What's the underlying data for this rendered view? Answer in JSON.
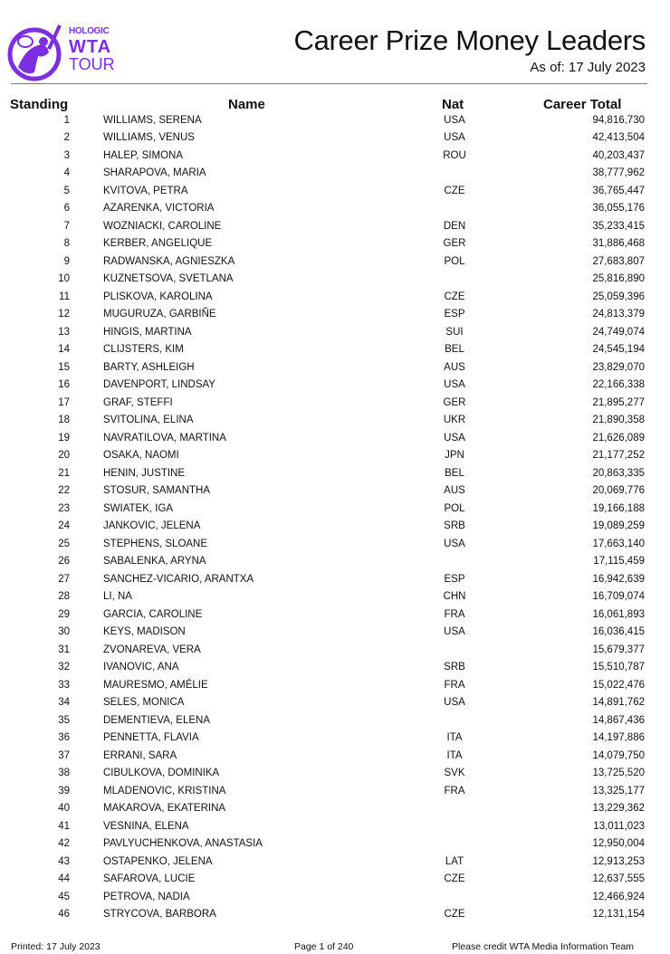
{
  "logo": {
    "line1": "HOLOGIC",
    "line2": "WTA",
    "line3": "TOUR",
    "color": "#7b2fe0"
  },
  "header": {
    "title": "Career Prize Money Leaders",
    "as_of": "As of: 17 July 2023"
  },
  "columns": {
    "standing": "Standing",
    "name": "Name",
    "nat": "Nat",
    "total": "Career Total"
  },
  "rows": [
    [
      "1",
      "WILLIAMS, SERENA",
      "USA",
      "94,816,730"
    ],
    [
      "2",
      "WILLIAMS, VENUS",
      "USA",
      "42,413,504"
    ],
    [
      "3",
      "HALEP, SIMONA",
      "ROU",
      "40,203,437"
    ],
    [
      "4",
      "SHARAPOVA, MARIA",
      "",
      "38,777,962"
    ],
    [
      "5",
      "KVITOVA, PETRA",
      "CZE",
      "36,765,447"
    ],
    [
      "6",
      "AZARENKA, VICTORIA",
      "",
      "36,055,176"
    ],
    [
      "7",
      "WOZNIACKI, CAROLINE",
      "DEN",
      "35,233,415"
    ],
    [
      "8",
      "KERBER, ANGELIQUE",
      "GER",
      "31,886,468"
    ],
    [
      "9",
      "RADWANSKA, AGNIESZKA",
      "POL",
      "27,683,807"
    ],
    [
      "10",
      "KUZNETSOVA, SVETLANA",
      "",
      "25,816,890"
    ],
    [
      "11",
      "PLISKOVA, KAROLINA",
      "CZE",
      "25,059,396"
    ],
    [
      "12",
      "MUGURUZA, GARBIÑE",
      "ESP",
      "24,813,379"
    ],
    [
      "13",
      "HINGIS, MARTINA",
      "SUI",
      "24,749,074"
    ],
    [
      "14",
      "CLIJSTERS, KIM",
      "BEL",
      "24,545,194"
    ],
    [
      "15",
      "BARTY, ASHLEIGH",
      "AUS",
      "23,829,070"
    ],
    [
      "16",
      "DAVENPORT, LINDSAY",
      "USA",
      "22,166,338"
    ],
    [
      "17",
      "GRAF, STEFFI",
      "GER",
      "21,895,277"
    ],
    [
      "18",
      "SVITOLINA, ELINA",
      "UKR",
      "21,890,358"
    ],
    [
      "19",
      "NAVRATILOVA, MARTINA",
      "USA",
      "21,626,089"
    ],
    [
      "20",
      "OSAKA, NAOMI",
      "JPN",
      "21,177,252"
    ],
    [
      "21",
      "HENIN, JUSTINE",
      "BEL",
      "20,863,335"
    ],
    [
      "22",
      "STOSUR, SAMANTHA",
      "AUS",
      "20,069,776"
    ],
    [
      "23",
      "SWIATEK, IGA",
      "POL",
      "19,166,188"
    ],
    [
      "24",
      "JANKOVIC, JELENA",
      "SRB",
      "19,089,259"
    ],
    [
      "25",
      "STEPHENS, SLOANE",
      "USA",
      "17,663,140"
    ],
    [
      "26",
      "SABALENKA, ARYNA",
      "",
      "17,115,459"
    ],
    [
      "27",
      "SANCHEZ-VICARIO, ARANTXA",
      "ESP",
      "16,942,639"
    ],
    [
      "28",
      "LI, NA",
      "CHN",
      "16,709,074"
    ],
    [
      "29",
      "GARCIA, CAROLINE",
      "FRA",
      "16,061,893"
    ],
    [
      "30",
      "KEYS, MADISON",
      "USA",
      "16,036,415"
    ],
    [
      "31",
      "ZVONAREVA, VERA",
      "",
      "15,679,377"
    ],
    [
      "32",
      "IVANOVIC, ANA",
      "SRB",
      "15,510,787"
    ],
    [
      "33",
      "MAURESMO, AMÉLIE",
      "FRA",
      "15,022,476"
    ],
    [
      "34",
      "SELES, MONICA",
      "USA",
      "14,891,762"
    ],
    [
      "35",
      "DEMENTIEVA, ELENA",
      "",
      "14,867,436"
    ],
    [
      "36",
      "PENNETTA, FLAVIA",
      "ITA",
      "14,197,886"
    ],
    [
      "37",
      "ERRANI, SARA",
      "ITA",
      "14,079,750"
    ],
    [
      "38",
      "CIBULKOVA, DOMINIKA",
      "SVK",
      "13,725,520"
    ],
    [
      "39",
      "MLADENOVIC, KRISTINA",
      "FRA",
      "13,325,177"
    ],
    [
      "40",
      "MAKAROVA, EKATERINA",
      "",
      "13,229,362"
    ],
    [
      "41",
      "VESNINA, ELENA",
      "",
      "13,011,023"
    ],
    [
      "42",
      "PAVLYUCHENKOVA, ANASTASIA",
      "",
      "12,950,004"
    ],
    [
      "43",
      "OSTAPENKO, JELENA",
      "LAT",
      "12,913,253"
    ],
    [
      "44",
      "SAFAROVA, LUCIE",
      "CZE",
      "12,637,555"
    ],
    [
      "45",
      "PETROVA, NADIA",
      "",
      "12,466,924"
    ],
    [
      "46",
      "STRYCOVA, BARBORA",
      "CZE",
      "12,131,154"
    ]
  ],
  "footer": {
    "printed": "Printed: 17 July 2023",
    "page": "Page 1 of 240",
    "credit": "Please credit WTA Media Information Team"
  }
}
